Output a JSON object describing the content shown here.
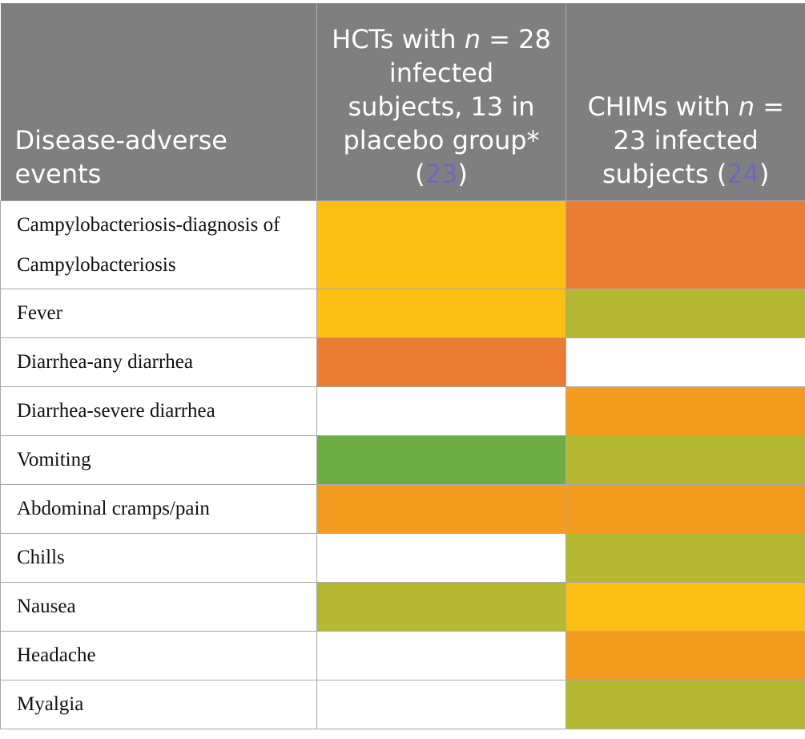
{
  "table": {
    "headers": [
      {
        "parts": [
          "Disease-adverse events"
        ]
      },
      {
        "parts": [
          "HCTs with ",
          "n",
          " = 28 infected subjects, 13 in placebo group* (",
          "23",
          ")"
        ]
      },
      {
        "parts": [
          "CHIMs with ",
          "n",
          " = 23 infected subjects (",
          "24",
          ")"
        ]
      }
    ],
    "rows": [
      {
        "label": "Campylobacteriosis-diagnosis of Campylobacteriosis",
        "colors": [
          "#fbbf16",
          "#ec7c31"
        ]
      },
      {
        "label": "Fever",
        "colors": [
          "#fbbf16",
          "#b5b833"
        ]
      },
      {
        "label": "Diarrhea-any diarrhea",
        "colors": [
          "#ec7c31",
          "#ffffff"
        ]
      },
      {
        "label": "Diarrhea-severe diarrhea",
        "colors": [
          "#ffffff",
          "#f39c20"
        ]
      },
      {
        "label": "Vomiting",
        "colors": [
          "#6eac46",
          "#b5b833"
        ]
      },
      {
        "label": "Abdominal cramps/pain",
        "colors": [
          "#f39c20",
          "#f39c20"
        ]
      },
      {
        "label": "Chills",
        "colors": [
          "#ffffff",
          "#b5b833"
        ]
      },
      {
        "label": "Nausea",
        "colors": [
          "#b5b833",
          "#fbbf16"
        ]
      },
      {
        "label": "Headache",
        "colors": [
          "#ffffff",
          "#f39c20"
        ]
      },
      {
        "label": "Myalgia",
        "colors": [
          "#ffffff",
          "#b5b833"
        ]
      }
    ]
  }
}
